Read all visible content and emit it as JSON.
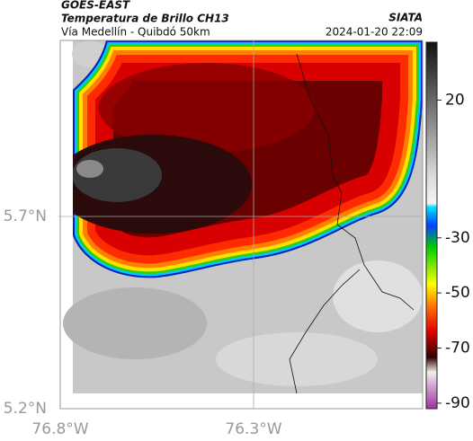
{
  "header": {
    "title": "GOES-EAST",
    "subtitle": "Temperatura de Brillo CH13",
    "caption": "Vía Medellín - Quibdó 50km",
    "source": "SIATA",
    "datetime": "2024-01-20 22:09"
  },
  "axes": {
    "y_labels": [
      "5.7°N",
      "5.2°N"
    ],
    "x_labels": [
      "76.8°W",
      "76.3°W"
    ]
  },
  "colorbar": {
    "lim": [
      41,
      -92
    ],
    "ticks": [
      20,
      -30,
      -50,
      -70,
      -90
    ]
  }
}
